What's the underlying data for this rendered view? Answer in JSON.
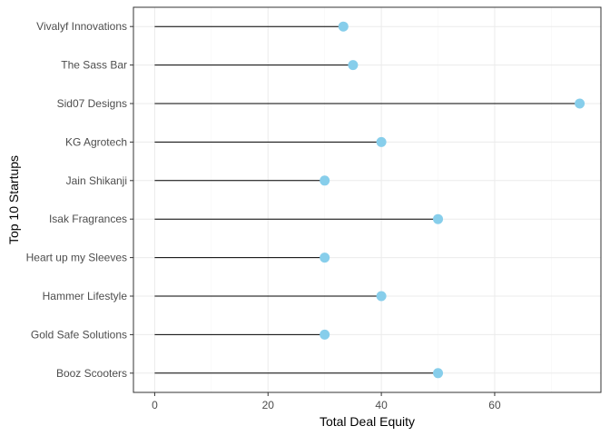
{
  "chart_data": {
    "type": "lollipop",
    "categories": [
      "Booz Scooters",
      "Gold Safe Solutions",
      "Hammer Lifestyle",
      "Heart up my Sleeves",
      "Isak Fragrances",
      "Jain Shikanji",
      "KG Agrotech",
      "Sid07 Designs",
      "The Sass Bar",
      "Vivalyf Innovations"
    ],
    "values": [
      50,
      30,
      40,
      30,
      50,
      30,
      40,
      75,
      35,
      33.3
    ],
    "xlabel": "Total Deal Equity",
    "ylabel": "Top 10 Startups",
    "xlim": [
      -3.75,
      78.75
    ],
    "x_ticks": [
      0,
      20,
      40,
      60
    ],
    "grid": true,
    "colors": {
      "point": "#87CEEB",
      "stem": "#000000",
      "grid_major": "#ebebeb",
      "grid_minor": "#f5f5f5",
      "panel_border": "#333333"
    }
  }
}
